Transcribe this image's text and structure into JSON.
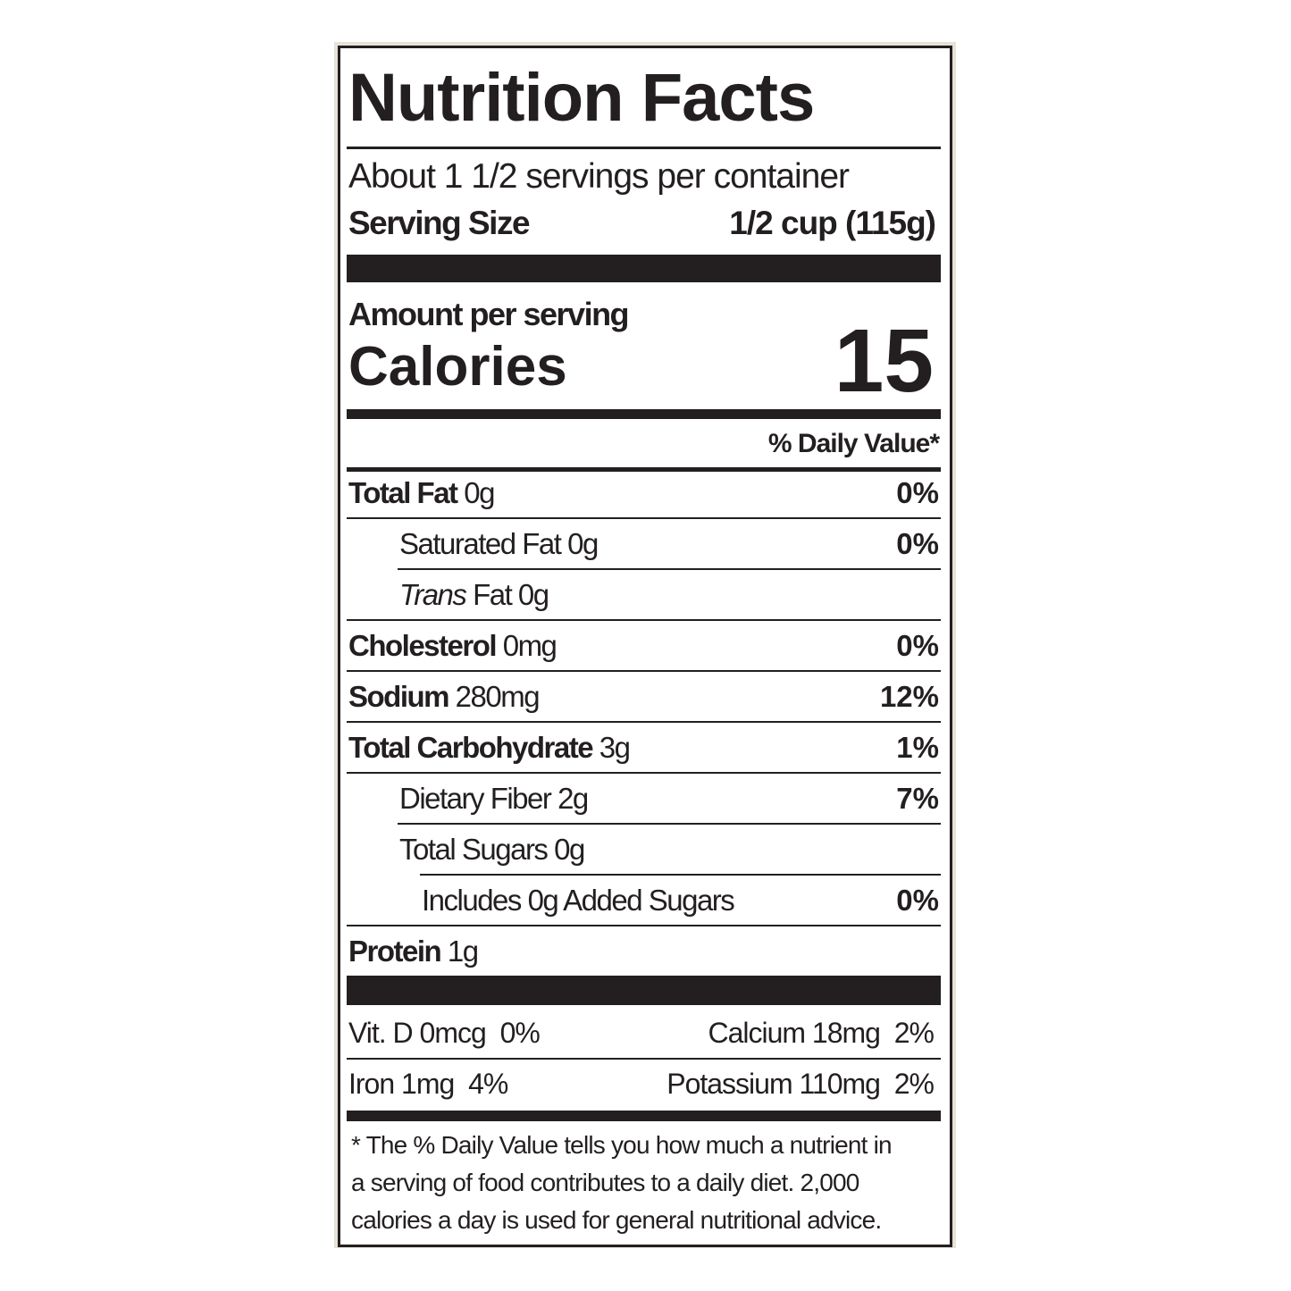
{
  "title": "Nutrition Facts",
  "servings": "About 1 1/2 servings per container",
  "serving_size": {
    "label": "Serving Size",
    "value": "1/2 cup (115g)"
  },
  "amount_per_serving": "Amount per serving",
  "calories": {
    "label": "Calories",
    "value": "15"
  },
  "daily_value_header": "% Daily Value*",
  "nutrients": [
    {
      "label": "Total Fat",
      "amount": "0g",
      "dv": "0%"
    },
    {
      "label": "Saturated Fat",
      "amount": "0g",
      "dv": "0%"
    },
    {
      "label": "Trans",
      "amount": "Fat 0g"
    },
    {
      "label": "Cholesterol",
      "amount": "0mg",
      "dv": "0%"
    },
    {
      "label": "Sodium",
      "amount": "280mg",
      "dv": "12%"
    },
    {
      "label": "Total Carbohydrate",
      "amount": "3g",
      "dv": "1%"
    },
    {
      "label": "Dietary Fiber",
      "amount": "2g",
      "dv": "7%"
    },
    {
      "label": "Total Sugars",
      "amount": "0g"
    },
    {
      "label": "Includes 0g Added Sugars",
      "dv": "0%"
    },
    {
      "label": "Protein",
      "amount": "1g"
    }
  ],
  "vitamins": [
    [
      {
        "name": "Vit. D 0mcg",
        "dv": "0%"
      },
      {
        "name": "Calcium 18mg",
        "dv": "2%"
      }
    ],
    [
      {
        "name": "Iron 1mg",
        "dv": "4%"
      },
      {
        "name": "Potassium 110mg",
        "dv": "2%"
      }
    ]
  ],
  "footnote": [
    "* The % Daily Value tells you how much a nutrient in",
    "a serving of food contributes to a daily diet. 2,000",
    "calories a day is used for general nutritional advice."
  ]
}
